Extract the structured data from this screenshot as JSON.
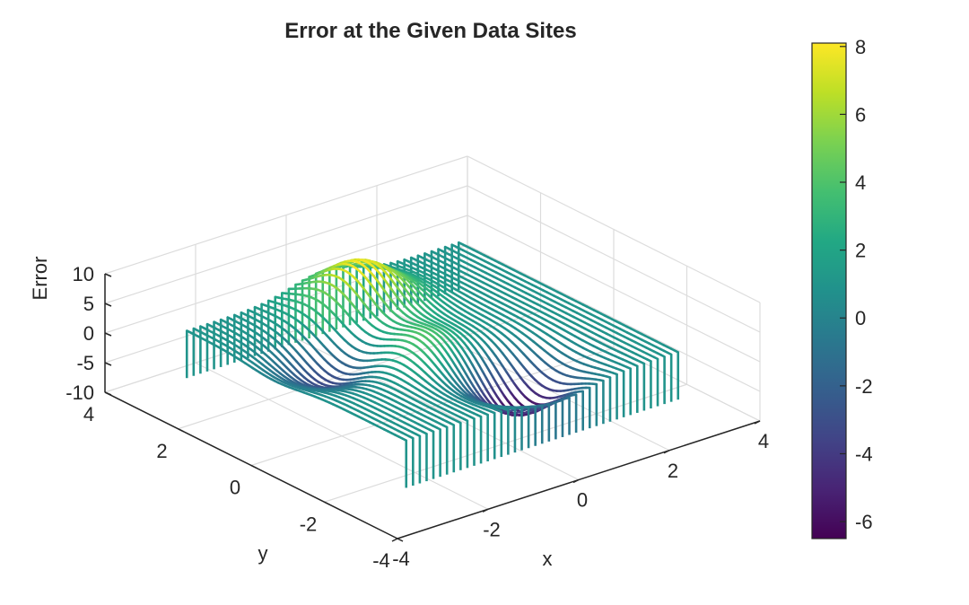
{
  "chart_data": {
    "type": "mesh3d",
    "title": "Error at the Given Data Sites",
    "xlabel": "x",
    "ylabel": "y",
    "zlabel": "Error",
    "xlim": [
      -4,
      4
    ],
    "ylim": [
      -4,
      4
    ],
    "zlim": [
      -10,
      10
    ],
    "x_ticks": [
      "-4",
      "-2",
      "0",
      "2",
      "4"
    ],
    "y_ticks": [
      "-4",
      "-2",
      "0",
      "2",
      "4"
    ],
    "z_ticks": [
      "-10",
      "-5",
      "0",
      "5",
      "10"
    ],
    "grid": true,
    "colormap": "viridis",
    "colorbar": {
      "limits": [
        -6.5,
        8.1
      ],
      "ticks": [
        "-6",
        "-4",
        "-2",
        "0",
        "2",
        "4",
        "6",
        "8"
      ],
      "placement": "right"
    },
    "surface": {
      "x_range": [
        -3,
        3
      ],
      "y_range": [
        -3,
        3
      ],
      "lines_along": "y",
      "curtain_base_z": -7,
      "baseline_z": 1,
      "features": [
        {
          "type": "peak",
          "x": 0.0,
          "y": 2.0,
          "z": 8.1
        },
        {
          "type": "peak",
          "x": -0.5,
          "y": -0.3,
          "z": 4.7
        },
        {
          "type": "valley",
          "x": 0.4,
          "y": -1.8,
          "z": -6.5
        },
        {
          "type": "valley",
          "x": -1.8,
          "y": 0.6,
          "z": -3.5
        }
      ]
    }
  }
}
